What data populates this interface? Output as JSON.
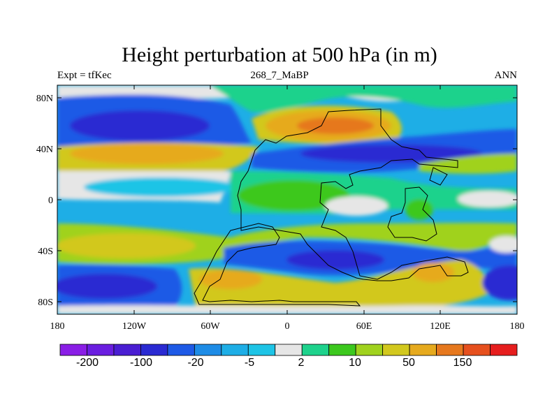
{
  "title": "Height perturbation at 500 hPa (in m)",
  "subtitle_left": "Expt = tfKec",
  "subtitle_center": "268_7_MaBP",
  "subtitle_right": "ANN",
  "lon_ticks": [
    "180",
    "120W",
    "60W",
    "0",
    "60E",
    "120E",
    "180"
  ],
  "lat_ticks": [
    "80N",
    "40N",
    "0",
    "40S",
    "80S"
  ],
  "colorbar": {
    "colors": [
      "#8a1ee6",
      "#6a1ee0",
      "#4a1ed2",
      "#2a2ad2",
      "#1e5ae6",
      "#1e8ce6",
      "#1eaee6",
      "#1ec4e6",
      "#e6e6e6",
      "#1ed28c",
      "#3cc81e",
      "#a0d21e",
      "#d2c81e",
      "#e6aa1e",
      "#e6781e",
      "#e6501e",
      "#e61e1e"
    ],
    "labels": [
      "-200",
      "-100",
      "-20",
      "-5",
      "2",
      "10",
      "50",
      "150"
    ]
  },
  "chart_data": {
    "type": "heatmap",
    "title": "Height perturbation at 500 hPa (in m)",
    "xlabel": "",
    "ylabel": "",
    "xlim": [
      -180,
      180
    ],
    "ylim": [
      -90,
      90
    ],
    "zonal_bands": [
      {
        "lat_range": [
          70,
          90
        ],
        "level": "10 to -5"
      },
      {
        "lat_range": [
          50,
          70
        ],
        "level": "-100"
      },
      {
        "lat_range": [
          25,
          50
        ],
        "level": "50"
      },
      {
        "lat_range": [
          10,
          25
        ],
        "level": "-5 to 2"
      },
      {
        "lat_range": [
          -25,
          10
        ],
        "level": "-5"
      },
      {
        "lat_range": [
          -45,
          -25
        ],
        "level": "10 to 50"
      },
      {
        "lat_range": [
          -60,
          -45
        ],
        "level": "-5"
      },
      {
        "lat_range": [
          -75,
          -60
        ],
        "level": "-100"
      },
      {
        "lat_range": [
          -90,
          -75
        ],
        "level": "10"
      }
    ]
  }
}
